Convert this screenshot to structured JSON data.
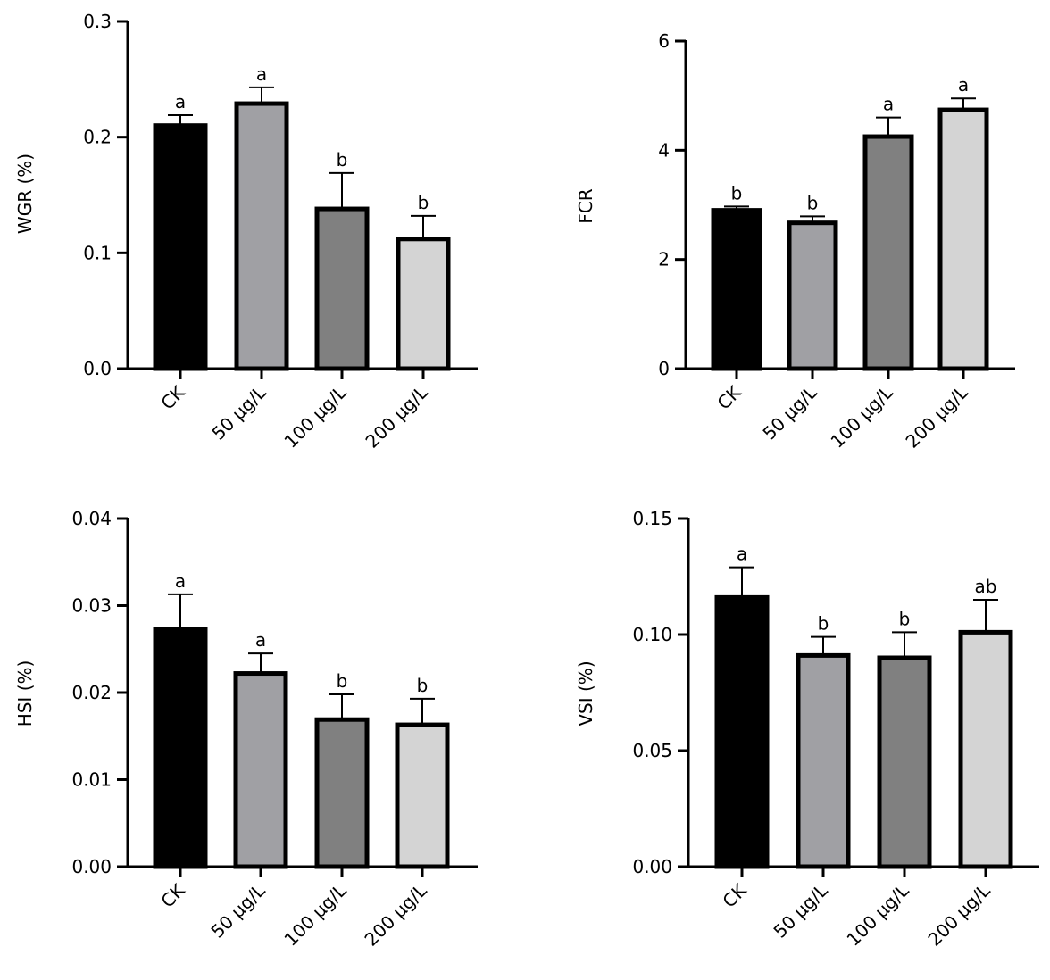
{
  "chart_data": [
    {
      "type": "bar",
      "ylabel": "WGR (%)",
      "ylim": [
        0,
        0.3
      ],
      "yticks": [
        "0.0",
        "0.1",
        "0.2",
        "0.3"
      ],
      "categories": [
        "CK",
        "50 μg/L",
        "100 μg/L",
        "200 μg/L"
      ],
      "values": [
        0.21,
        0.229,
        0.138,
        0.112
      ],
      "errors": [
        0.009,
        0.014,
        0.031,
        0.02
      ],
      "significance": [
        "a",
        "a",
        "b",
        "b"
      ],
      "colors": [
        "#000000",
        "#a0a0a4",
        "#808080",
        "#d4d4d4"
      ]
    },
    {
      "type": "bar",
      "ylabel": "FCR",
      "ylim": [
        0,
        6
      ],
      "yticks": [
        "0",
        "2",
        "4",
        "6"
      ],
      "categories": [
        "CK",
        "50 μg/L",
        "100 μg/L",
        "200 μg/L"
      ],
      "values": [
        2.9,
        2.67,
        4.25,
        4.74
      ],
      "errors": [
        0.07,
        0.12,
        0.35,
        0.21
      ],
      "significance": [
        "b",
        "b",
        "a",
        "a"
      ],
      "colors": [
        "#000000",
        "#a0a0a4",
        "#808080",
        "#d4d4d4"
      ]
    },
    {
      "type": "bar",
      "ylabel": "HSI  (%)",
      "ylim": [
        0,
        0.04
      ],
      "yticks": [
        "0.00",
        "0.01",
        "0.02",
        "0.03",
        "0.04"
      ],
      "categories": [
        "CK",
        "50 μg/L",
        "100 μg/L",
        "200 μg/L"
      ],
      "values": [
        0.0273,
        0.0222,
        0.0169,
        0.0163
      ],
      "errors": [
        0.004,
        0.0023,
        0.0029,
        0.003
      ],
      "significance": [
        "a",
        "a",
        "b",
        "b"
      ],
      "colors": [
        "#000000",
        "#a0a0a4",
        "#808080",
        "#d4d4d4"
      ]
    },
    {
      "type": "bar",
      "ylabel": "VSI (%)",
      "ylim": [
        0,
        0.15
      ],
      "yticks": [
        "0.00",
        "0.05",
        "0.10",
        "0.15"
      ],
      "categories": [
        "CK",
        "50 μg/L",
        "100 μg/L",
        "200 μg/L"
      ],
      "values": [
        0.116,
        0.091,
        0.09,
        0.101
      ],
      "errors": [
        0.013,
        0.008,
        0.011,
        0.014
      ],
      "significance": [
        "a",
        "b",
        "b",
        "ab"
      ],
      "colors": [
        "#000000",
        "#a0a0a4",
        "#808080",
        "#d4d4d4"
      ]
    }
  ]
}
